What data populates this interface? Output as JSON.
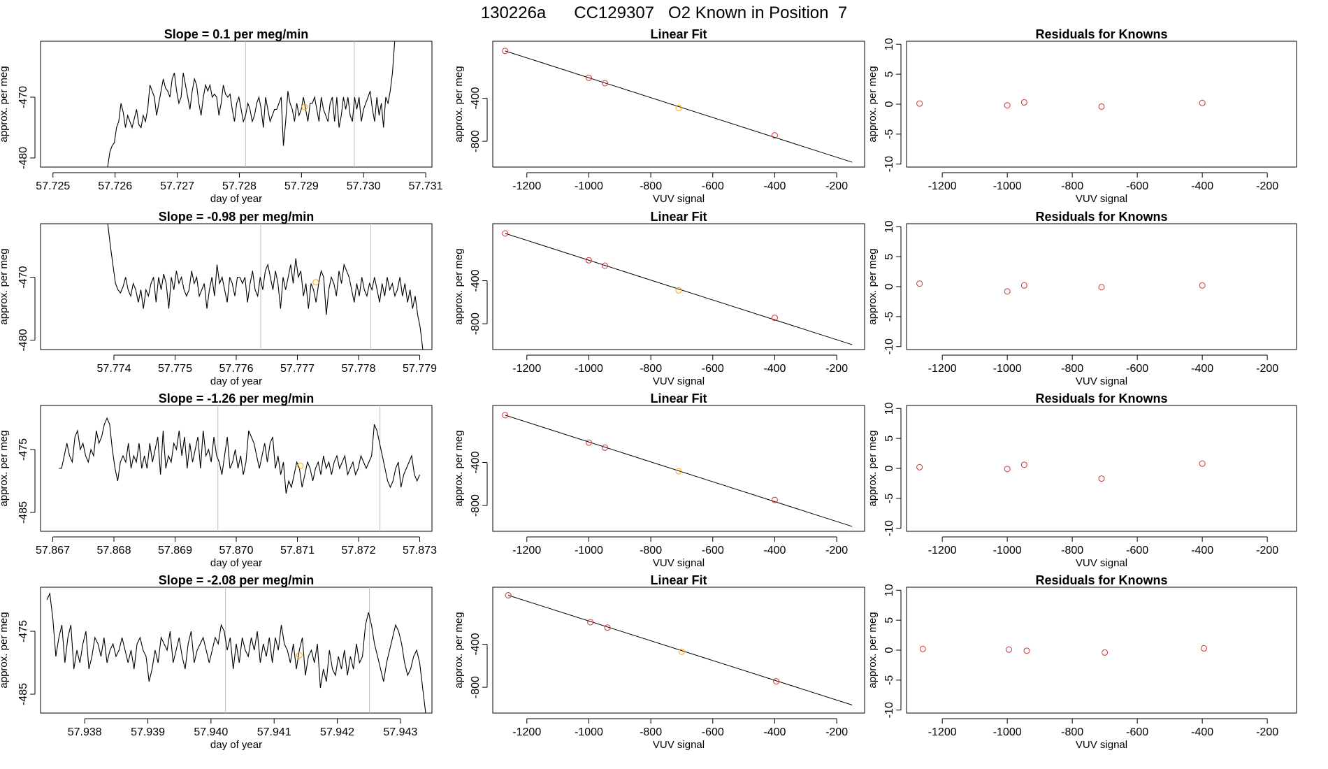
{
  "figure": {
    "title": "130226a      CC129307   O2 Known in Position  7",
    "colors": {
      "line": "#000000",
      "vline": "#bebebe",
      "known": "#cd3333",
      "unknown": "#ffa500"
    }
  },
  "chart_data": [
    {
      "type": "line",
      "panel": "timeseries",
      "row": 0,
      "title": "Slope =  0.1  per meg/min",
      "xlabel": "day of year",
      "ylabel": "approx. per meg",
      "xlim": [
        57.7248,
        57.7311
      ],
      "ylim": [
        -481.5,
        -460.8
      ],
      "xticks": [
        57.725,
        57.726,
        57.727,
        57.728,
        57.729,
        57.73,
        57.731
      ],
      "xtick_labels": [
        "57.725",
        "57.726",
        "57.727",
        "57.728",
        "57.729",
        "57.730",
        "57.731"
      ],
      "yticks": [
        -470,
        -480
      ],
      "ytick_labels": [
        "-470",
        "-480"
      ],
      "vlines": [
        57.7281,
        57.72985
      ],
      "x_start": 57.72588,
      "x_end": 57.7305,
      "series": [
        -481.5,
        -479,
        -478,
        -477.5,
        -475,
        -474,
        -471,
        -472.5,
        -475,
        -473,
        -474,
        -475,
        -473.5,
        -472,
        -474.5,
        -475,
        -473,
        -474,
        -472,
        -468,
        -469,
        -470,
        -473,
        -471,
        -469,
        -467,
        -468.5,
        -469,
        -470,
        -467,
        -466,
        -469,
        -471,
        -470,
        -466,
        -468,
        -470,
        -472,
        -469,
        -467,
        -468,
        -471,
        -473,
        -470,
        -468,
        -469,
        -468,
        -470,
        -469.5,
        -470,
        -473,
        -471,
        -468,
        -469.5,
        -470,
        -469.5,
        -472,
        -474,
        -471,
        -470,
        -472,
        -474,
        -473,
        -471,
        -472,
        -474,
        -473,
        -471,
        -470,
        -472,
        -475,
        -470,
        -472,
        -474,
        -473,
        -472,
        -472,
        -471,
        -470,
        -478,
        -474,
        -469,
        -471,
        -472,
        -474,
        -471,
        -473,
        -472,
        -470,
        -472,
        -474,
        -471,
        -471,
        -470,
        -472,
        -474,
        -470,
        -472,
        -473,
        -474,
        -471,
        -470,
        -474,
        -470,
        -475,
        -473,
        -470,
        -472,
        -470,
        -473,
        -474,
        -470,
        -472,
        -470,
        -474,
        -472,
        -471,
        -470,
        -469,
        -472,
        -474,
        -470,
        -473,
        -471,
        -475,
        -470,
        -471,
        -469,
        -466,
        -460.8
      ],
      "unknown_point": {
        "x": 57.72905,
        "y": -471.6
      }
    },
    {
      "type": "scatter",
      "panel": "linear_fit",
      "row": 0,
      "title": "Linear Fit",
      "xlabel": "VUV signal",
      "ylabel": "approx. per meg",
      "xlim": [
        -1310,
        -110
      ],
      "ylim": [
        -1040,
        130
      ],
      "xticks": [
        -1200,
        -1000,
        -800,
        -600,
        -400,
        -200
      ],
      "yticks": [
        -400,
        -800
      ],
      "ytick_labels": [
        "-400",
        "-800"
      ],
      "fit": {
        "x": [
          -1270,
          -150
        ],
        "y": [
          40,
          -995
        ]
      },
      "known_points": {
        "x": [
          -1270,
          -1000,
          -948,
          -400
        ],
        "y": [
          40,
          -210,
          -260,
          -745
        ]
      },
      "unknown_point": {
        "x": -710,
        "y": -490
      }
    },
    {
      "type": "scatter",
      "panel": "residuals",
      "row": 0,
      "title": "Residuals for Knowns",
      "xlabel": "VUV signal",
      "ylabel": "approx. per meg",
      "xlim": [
        -1310,
        -110
      ],
      "ylim": [
        -10.5,
        10.5
      ],
      "xticks": [
        -1200,
        -1000,
        -800,
        -600,
        -400,
        -200
      ],
      "yticks": [
        10,
        5,
        0,
        -5,
        -10
      ],
      "points": {
        "x": [
          -1270,
          -1000,
          -948,
          -710,
          -400
        ],
        "y": [
          0.1,
          -0.2,
          0.3,
          -0.4,
          0.2
        ]
      }
    },
    {
      "type": "line",
      "panel": "timeseries",
      "row": 1,
      "title": "Slope =  -0.98  per meg/min",
      "xlabel": "day of year",
      "ylabel": "approx. per meg",
      "xlim": [
        57.7728,
        57.7792
      ],
      "ylim": [
        -481.5,
        -461.5
      ],
      "xticks": [
        57.774,
        57.775,
        57.776,
        57.777,
        57.778,
        57.779
      ],
      "xtick_labels": [
        "57.774",
        "57.775",
        "57.776",
        "57.777",
        "57.778",
        "57.779"
      ],
      "yticks": [
        -470,
        -480
      ],
      "ytick_labels": [
        "-470",
        "-480"
      ],
      "vlines": [
        57.7764,
        57.7782
      ],
      "x_start": 57.7739,
      "x_end": 57.77905,
      "series": [
        -461.5,
        -465,
        -468,
        -471,
        -472,
        -472.5,
        -471.5,
        -470,
        -472,
        -473,
        -471,
        -472,
        -474,
        -472,
        -475,
        -472,
        -473,
        -471,
        -470,
        -474,
        -470,
        -472,
        -469.5,
        -471,
        -475,
        -470,
        -472,
        -469,
        -471,
        -470,
        -472,
        -473,
        -472,
        -469,
        -471,
        -470,
        -473,
        -472,
        -471,
        -475,
        -472,
        -470,
        -473,
        -468,
        -471,
        -470,
        -472,
        -474,
        -470,
        -471,
        -473,
        -470,
        -470,
        -471,
        -470,
        -474,
        -471,
        -469,
        -472,
        -473,
        -470,
        -472,
        -469,
        -468,
        -470,
        -472,
        -469,
        -471,
        -475,
        -470,
        -472,
        -470,
        -468,
        -471,
        -467,
        -470,
        -469,
        -473,
        -471,
        -475,
        -471,
        -472,
        -474,
        -471,
        -469,
        -470,
        -476,
        -472,
        -470,
        -471,
        -473,
        -469,
        -471,
        -468,
        -469,
        -470,
        -472,
        -474,
        -471,
        -473,
        -470,
        -472,
        -473,
        -471,
        -472,
        -470,
        -472,
        -474,
        -471,
        -473,
        -470,
        -472,
        -471,
        -473,
        -472,
        -470,
        -473,
        -471,
        -474,
        -472,
        -475,
        -473,
        -476,
        -478,
        -481.5
      ],
      "unknown_point": {
        "x": 57.7773,
        "y": -470.8
      }
    },
    {
      "type": "scatter",
      "panel": "linear_fit",
      "row": 1,
      "title": "Linear Fit",
      "xlabel": "VUV signal",
      "ylabel": "approx. per meg",
      "xlim": [
        -1310,
        -110
      ],
      "ylim": [
        -1040,
        130
      ],
      "xticks": [
        -1200,
        -1000,
        -800,
        -600,
        -400,
        -200
      ],
      "yticks": [
        -400,
        -800
      ],
      "ytick_labels": [
        "-400",
        "-800"
      ],
      "fit": {
        "x": [
          -1270,
          -150
        ],
        "y": [
          40,
          -995
        ]
      },
      "known_points": {
        "x": [
          -1270,
          -1000,
          -948,
          -400
        ],
        "y": [
          40,
          -210,
          -260,
          -745
        ]
      },
      "unknown_point": {
        "x": -710,
        "y": -490
      }
    },
    {
      "type": "scatter",
      "panel": "residuals",
      "row": 1,
      "title": "Residuals for Knowns",
      "xlabel": "VUV signal",
      "ylabel": "approx. per meg",
      "xlim": [
        -1310,
        -110
      ],
      "ylim": [
        -10.5,
        10.5
      ],
      "xticks": [
        -1200,
        -1000,
        -800,
        -600,
        -400,
        -200
      ],
      "yticks": [
        10,
        5,
        0,
        -5,
        -10
      ],
      "points": {
        "x": [
          -1270,
          -1000,
          -948,
          -710,
          -400
        ],
        "y": [
          0.5,
          -0.8,
          0.2,
          -0.1,
          0.2
        ]
      }
    },
    {
      "type": "line",
      "panel": "timeseries",
      "row": 2,
      "title": "Slope =  -1.26  per meg/min",
      "xlabel": "day of year",
      "ylabel": "approx. per meg",
      "xlim": [
        57.8668,
        57.8732
      ],
      "ylim": [
        -488,
        -468
      ],
      "xticks": [
        57.867,
        57.868,
        57.869,
        57.87,
        57.871,
        57.872,
        57.873
      ],
      "xtick_labels": [
        "57.867",
        "57.868",
        "57.869",
        "57.870",
        "57.871",
        "57.872",
        "57.873"
      ],
      "yticks": [
        -475,
        -485
      ],
      "ytick_labels": [
        "-475",
        "-485"
      ],
      "vlines": [
        57.8697,
        57.87235
      ],
      "x_start": 57.8671,
      "x_end": 57.873,
      "series": [
        -478,
        -478,
        -476,
        -474,
        -476,
        -477,
        -473,
        -472,
        -475,
        -474,
        -476,
        -477,
        -475,
        -476,
        -472,
        -474,
        -473,
        -471,
        -470,
        -471,
        -475,
        -478,
        -480,
        -477,
        -476,
        -477,
        -474,
        -478,
        -476,
        -477,
        -474,
        -478,
        -476,
        -478,
        -474,
        -477,
        -475,
        -473,
        -479,
        -472,
        -478,
        -476,
        -477,
        -474,
        -475,
        -472,
        -476,
        -473,
        -478,
        -474,
        -477,
        -475,
        -473,
        -478,
        -472,
        -476,
        -475,
        -477,
        -473,
        -476,
        -477,
        -479,
        -476,
        -473,
        -478,
        -477,
        -475,
        -478,
        -476,
        -479,
        -477,
        -472,
        -473,
        -474,
        -476,
        -478,
        -476,
        -474,
        -477,
        -474,
        -473,
        -478,
        -476,
        -479,
        -477,
        -482,
        -480,
        -481,
        -479,
        -477,
        -478,
        -481,
        -479,
        -477,
        -478,
        -480,
        -478,
        -477,
        -479,
        -476,
        -478,
        -477,
        -479,
        -477,
        -476,
        -478,
        -477,
        -476,
        -479,
        -478,
        -477,
        -479,
        -478,
        -476,
        -477,
        -478,
        -477,
        -476,
        -471,
        -472,
        -474,
        -476,
        -478,
        -480,
        -481,
        -480,
        -478,
        -477,
        -481,
        -479,
        -478,
        -477,
        -476,
        -479,
        -480,
        -479
      ],
      "unknown_point": {
        "x": 57.87105,
        "y": -477.6
      }
    },
    {
      "type": "scatter",
      "panel": "linear_fit",
      "row": 2,
      "title": "Linear Fit",
      "xlabel": "VUV signal",
      "ylabel": "approx. per meg",
      "xlim": [
        -1310,
        -110
      ],
      "ylim": [
        -1040,
        130
      ],
      "xticks": [
        -1200,
        -1000,
        -800,
        -600,
        -400,
        -200
      ],
      "yticks": [
        -400,
        -800
      ],
      "ytick_labels": [
        "-400",
        "-800"
      ],
      "fit": {
        "x": [
          -1270,
          -150
        ],
        "y": [
          40,
          -995
        ]
      },
      "known_points": {
        "x": [
          -1270,
          -1000,
          -948,
          -400
        ],
        "y": [
          40,
          -215,
          -262,
          -748
        ]
      },
      "unknown_point": {
        "x": -710,
        "y": -482
      }
    },
    {
      "type": "scatter",
      "panel": "residuals",
      "row": 2,
      "title": "Residuals for Knowns",
      "xlabel": "VUV signal",
      "ylabel": "approx. per meg",
      "xlim": [
        -1310,
        -110
      ],
      "ylim": [
        -10.5,
        10.5
      ],
      "xticks": [
        -1200,
        -1000,
        -800,
        -600,
        -400,
        -200
      ],
      "yticks": [
        10,
        5,
        0,
        -5,
        -10
      ],
      "points": {
        "x": [
          -1270,
          -1000,
          -948,
          -710,
          -400
        ],
        "y": [
          0.2,
          -0.1,
          0.6,
          -1.7,
          0.8
        ]
      }
    },
    {
      "type": "line",
      "panel": "timeseries",
      "row": 3,
      "title": "Slope =  -2.08  per meg/min",
      "xlabel": "day of year",
      "ylabel": "approx. per meg",
      "xlim": [
        57.9373,
        57.9435
      ],
      "ylim": [
        -488,
        -468
      ],
      "xticks": [
        57.938,
        57.939,
        57.94,
        57.941,
        57.942,
        57.943
      ],
      "xtick_labels": [
        "57.938",
        "57.939",
        "57.940",
        "57.941",
        "57.942",
        "57.943"
      ],
      "yticks": [
        -475,
        -485
      ],
      "ytick_labels": [
        "-475",
        "-485"
      ],
      "vlines": [
        57.94023,
        57.94251
      ],
      "x_start": 57.9374,
      "x_end": 57.9434,
      "series": [
        -470,
        -469,
        -473,
        -479,
        -476,
        -474,
        -480,
        -476,
        -474,
        -481,
        -478,
        -480,
        -477,
        -475,
        -481,
        -479,
        -476,
        -477,
        -479,
        -476,
        -480,
        -478,
        -477,
        -479,
        -478,
        -476,
        -478,
        -480,
        -478,
        -481,
        -477,
        -476,
        -478,
        -479,
        -483,
        -481,
        -478,
        -480,
        -476,
        -477,
        -478,
        -475,
        -480,
        -478,
        -476,
        -479,
        -481,
        -477,
        -475,
        -480,
        -478,
        -477,
        -476,
        -478,
        -480,
        -478,
        -476,
        -477,
        -474,
        -475,
        -478,
        -476,
        -481,
        -477,
        -480,
        -476,
        -478,
        -479,
        -476,
        -478,
        -475,
        -480,
        -477,
        -479,
        -476,
        -480,
        -476,
        -478,
        -474,
        -477,
        -478,
        -480,
        -477,
        -481,
        -478,
        -476,
        -482,
        -479,
        -478,
        -480,
        -477,
        -484,
        -481,
        -483,
        -478,
        -481,
        -482,
        -479,
        -481,
        -478,
        -482,
        -479,
        -481,
        -477,
        -480,
        -479,
        -474,
        -472,
        -474,
        -477,
        -479,
        -481,
        -483,
        -480,
        -478,
        -476,
        -474,
        -475,
        -477,
        -480,
        -482,
        -481,
        -479,
        -478,
        -480,
        -484,
        -488
      ],
      "unknown_point": {
        "x": 57.9414,
        "y": -478.8
      }
    },
    {
      "type": "scatter",
      "panel": "linear_fit",
      "row": 3,
      "title": "Linear Fit",
      "xlabel": "VUV signal",
      "ylabel": "approx. per meg",
      "xlim": [
        -1310,
        -110
      ],
      "ylim": [
        -1040,
        130
      ],
      "xticks": [
        -1200,
        -1000,
        -800,
        -600,
        -400,
        -200
      ],
      "yticks": [
        -400,
        -800
      ],
      "ytick_labels": [
        "-400",
        "-800"
      ],
      "fit": {
        "x": [
          -1260,
          -150
        ],
        "y": [
          55,
          -965
        ]
      },
      "known_points": {
        "x": [
          -1260,
          -995,
          -940,
          -395
        ],
        "y": [
          55,
          -195,
          -245,
          -745
        ]
      },
      "unknown_point": {
        "x": -700,
        "y": -470
      }
    },
    {
      "type": "scatter",
      "panel": "residuals",
      "row": 3,
      "title": "Residuals for Knowns",
      "xlabel": "VUV signal",
      "ylabel": "approx. per meg",
      "xlim": [
        -1310,
        -110
      ],
      "ylim": [
        -10.5,
        10.5
      ],
      "xticks": [
        -1200,
        -1000,
        -800,
        -600,
        -400,
        -200
      ],
      "yticks": [
        10,
        5,
        0,
        -5,
        -10
      ],
      "points": {
        "x": [
          -1260,
          -995,
          -940,
          -700,
          -395
        ],
        "y": [
          0.2,
          0.1,
          -0.1,
          -0.4,
          0.3
        ]
      }
    }
  ]
}
